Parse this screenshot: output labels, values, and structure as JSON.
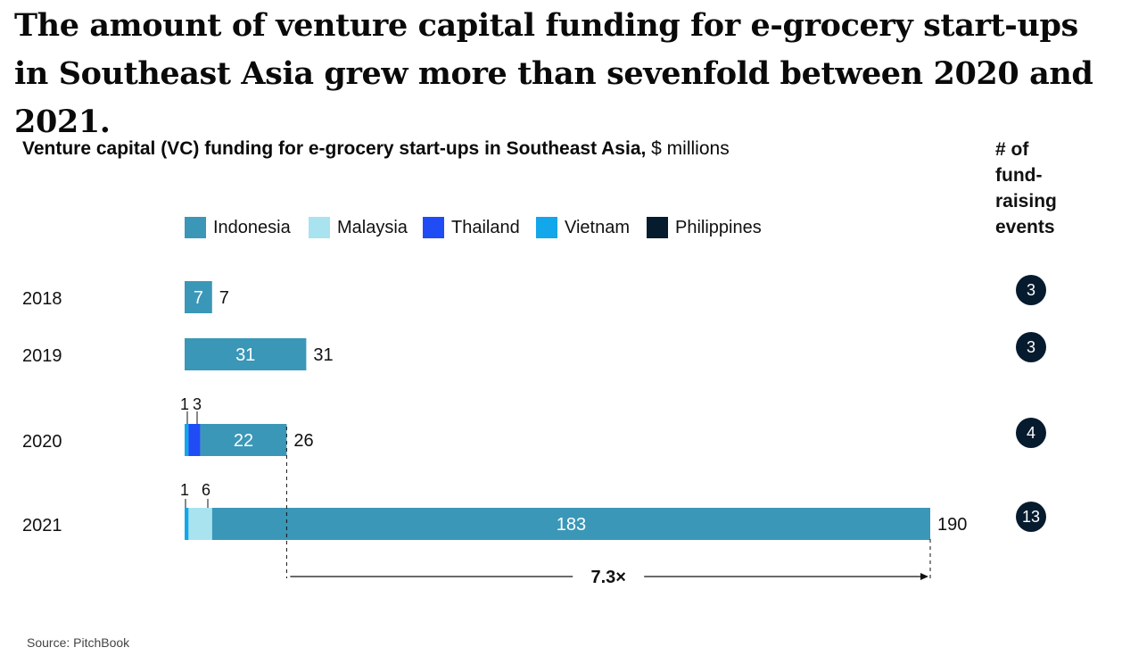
{
  "headline": "The amount of venture capital funding for e-grocery start-ups in Southeast Asia grew more than sevenfold between 2020 and 2021.",
  "subtitle_bold": "Venture capital (VC) funding for e-grocery start-ups in Southeast Asia,",
  "subtitle_unit": "$ millions",
  "right_header": "# of fund-raising events",
  "source": "Source: PitchBook",
  "multiplier_label": "7.3×",
  "colors": {
    "Indonesia": "#3a97b8",
    "Malaysia": "#a9e3f0",
    "Thailand": "#1f4cf5",
    "Vietnam": "#12a6ea",
    "Philippines": "#061b2e",
    "event_circle": "#061b2e"
  },
  "chart_data": {
    "type": "bar",
    "orientation": "horizontal",
    "stacked": true,
    "categories": [
      "2018",
      "2019",
      "2020",
      "2021"
    ],
    "series": [
      {
        "name": "Indonesia",
        "values": [
          7,
          31,
          22,
          183
        ]
      },
      {
        "name": "Malaysia",
        "values": [
          0,
          0,
          0,
          6
        ]
      },
      {
        "name": "Thailand",
        "values": [
          0,
          0,
          3,
          0
        ]
      },
      {
        "name": "Vietnam",
        "values": [
          0,
          0,
          1,
          1
        ]
      },
      {
        "name": "Philippines",
        "values": [
          0,
          0,
          0,
          0
        ]
      }
    ],
    "totals": [
      7,
      31,
      26,
      190
    ],
    "inside_labels": [
      "7",
      "31",
      "22",
      "183"
    ],
    "small_labels": [
      [],
      [],
      [
        "1",
        "3"
      ],
      [
        "1",
        "6"
      ]
    ],
    "fundraising_events": [
      "3",
      "3",
      "4",
      "13"
    ],
    "legend_position": "top"
  }
}
